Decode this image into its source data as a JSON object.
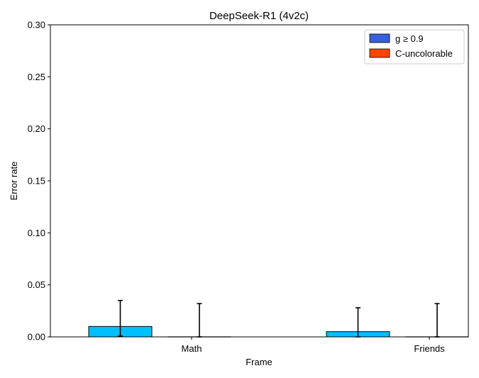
{
  "chart_data": {
    "type": "bar",
    "title": "DeepSeek-R1 (4v2c)",
    "xlabel": "Frame",
    "ylabel": "Error rate",
    "categories": [
      "Math",
      "Friends"
    ],
    "ylim": [
      0,
      0.3
    ],
    "yticks": [
      "0.00",
      "0.05",
      "0.10",
      "0.15",
      "0.20",
      "0.25",
      "0.30"
    ],
    "grid": false,
    "legend_position": "top-right",
    "legend": [
      {
        "label": "g ≥ 0.9",
        "color": "#3a5fdc"
      },
      {
        "label": "C-uncolorable",
        "color": "#ff4500"
      }
    ],
    "series": [
      {
        "name": "g ≥ 0.9",
        "bar_color": "#00bfff",
        "values": [
          0.01,
          0.005
        ],
        "err_low": [
          0.0007,
          0.0
        ],
        "err_high": [
          0.035,
          0.028
        ]
      },
      {
        "name": "C-uncolorable",
        "bar_color": "#ff4500",
        "values": [
          0.0,
          0.0
        ],
        "err_low": [
          0.0,
          0.0
        ],
        "err_high": [
          0.032,
          0.032
        ]
      }
    ]
  }
}
